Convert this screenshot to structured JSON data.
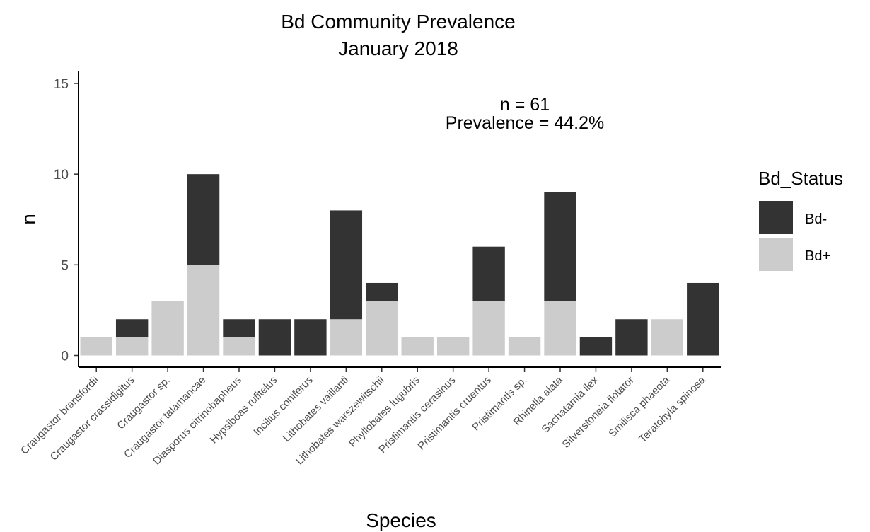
{
  "chart_data": {
    "type": "bar",
    "stacked": true,
    "title": "Bd Community Prevalence",
    "subtitle": "January 2018",
    "xlabel": "Species",
    "ylabel": "n",
    "ylim": [
      0,
      15.5
    ],
    "yticks": [
      0,
      5,
      10,
      15
    ],
    "grid": false,
    "legend_position": "right",
    "categories": [
      "Craugastor bransfordii",
      "Craugastor crassidigitus",
      "Craugastor sp.",
      "Craugastor talamancae",
      "Diasporus citrinobapheus",
      "Hypsiboas rufitelus",
      "Incilius coniferus",
      "Lithobates vaillanti",
      "Lithobates warszewitschii",
      "Phyllobates lugubris",
      "Pristimantis cerasinus",
      "Pristimantis cruentus",
      "Pristimantis sp.",
      "Rhinella alata",
      "Sachatamia ilex",
      "Silverstoneia flotator",
      "Smilisca phaeota",
      "Teratohyla spinosa"
    ],
    "series": [
      {
        "name": "Bd-",
        "color": "#333333",
        "values": [
          0,
          1,
          0,
          5,
          1,
          2,
          2,
          6,
          1,
          0,
          0,
          3,
          0,
          6,
          1,
          2,
          0,
          4
        ]
      },
      {
        "name": "Bd+",
        "color": "#cccccc",
        "values": [
          1,
          1,
          3,
          5,
          1,
          0,
          0,
          2,
          3,
          1,
          1,
          3,
          1,
          3,
          0,
          0,
          2,
          0
        ]
      }
    ],
    "annotation": {
      "line1": "n = 61",
      "line2": "Prevalence = 44.2%"
    },
    "legend_title": "Bd_Status"
  }
}
